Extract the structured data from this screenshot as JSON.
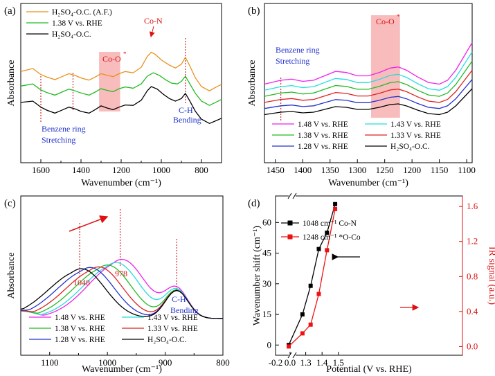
{
  "figure": {
    "panels": [
      "(a)",
      "(b)",
      "(c)",
      "(d)"
    ]
  },
  "chart_data": [
    {
      "panel": "(a)",
      "type": "line",
      "xlabel": "Wavenumber (cm⁻¹)",
      "ylabel": "Absorbance",
      "xlim": [
        1700,
        700
      ],
      "xticks": [
        "1600",
        "1400",
        "1200",
        "1000",
        "800"
      ],
      "series": [
        {
          "name": "H₂SO₄-O.C. (A.F.)",
          "color": "#e8901a",
          "offset": 0.72,
          "points": [
            [
              1700,
              0.55
            ],
            [
              1640,
              0.62
            ],
            [
              1600,
              0.48
            ],
            [
              1570,
              0.42
            ],
            [
              1530,
              0.36
            ],
            [
              1500,
              0.42
            ],
            [
              1460,
              0.5
            ],
            [
              1430,
              0.46
            ],
            [
              1400,
              0.4
            ],
            [
              1360,
              0.35
            ],
            [
              1330,
              0.42
            ],
            [
              1300,
              0.5
            ],
            [
              1270,
              0.46
            ],
            [
              1240,
              0.43
            ],
            [
              1210,
              0.5
            ],
            [
              1180,
              0.55
            ],
            [
              1140,
              0.52
            ],
            [
              1100,
              0.65
            ],
            [
              1070,
              0.9
            ],
            [
              1050,
              1.0
            ],
            [
              1030,
              0.95
            ],
            [
              1000,
              0.82
            ],
            [
              960,
              0.7
            ],
            [
              930,
              0.63
            ],
            [
              900,
              0.72
            ],
            [
              880,
              0.88
            ],
            [
              860,
              0.7
            ],
            [
              830,
              0.4
            ],
            [
              800,
              0.2
            ],
            [
              760,
              0.1
            ],
            [
              730,
              0.18
            ],
            [
              700,
              0.25
            ]
          ]
        },
        {
          "name": "1.38 V vs. RHE",
          "color": "#22bb22",
          "offset": 0.38,
          "points": [
            [
              1700,
              0.55
            ],
            [
              1640,
              0.6
            ],
            [
              1600,
              0.46
            ],
            [
              1570,
              0.4
            ],
            [
              1530,
              0.34
            ],
            [
              1500,
              0.4
            ],
            [
              1460,
              0.48
            ],
            [
              1430,
              0.44
            ],
            [
              1400,
              0.39
            ],
            [
              1360,
              0.34
            ],
            [
              1330,
              0.41
            ],
            [
              1300,
              0.49
            ],
            [
              1270,
              0.45
            ],
            [
              1240,
              0.42
            ],
            [
              1210,
              0.49
            ],
            [
              1180,
              0.53
            ],
            [
              1140,
              0.5
            ],
            [
              1100,
              0.6
            ],
            [
              1070,
              0.78
            ],
            [
              1040,
              0.86
            ],
            [
              1010,
              0.8
            ],
            [
              980,
              0.7
            ],
            [
              950,
              0.62
            ],
            [
              920,
              0.6
            ],
            [
              900,
              0.66
            ],
            [
              880,
              0.78
            ],
            [
              860,
              0.62
            ],
            [
              830,
              0.38
            ],
            [
              800,
              0.2
            ],
            [
              760,
              0.1
            ],
            [
              730,
              0.17
            ],
            [
              700,
              0.24
            ]
          ]
        },
        {
          "name": "H₂SO₄-O.C.",
          "color": "#000000",
          "offset": 0.0,
          "points": [
            [
              1700,
              0.55
            ],
            [
              1640,
              0.58
            ],
            [
              1600,
              0.44
            ],
            [
              1570,
              0.37
            ],
            [
              1530,
              0.3
            ],
            [
              1500,
              0.36
            ],
            [
              1460,
              0.44
            ],
            [
              1430,
              0.4
            ],
            [
              1400,
              0.34
            ],
            [
              1360,
              0.3
            ],
            [
              1330,
              0.38
            ],
            [
              1300,
              0.47
            ],
            [
              1270,
              0.42
            ],
            [
              1240,
              0.38
            ],
            [
              1210,
              0.44
            ],
            [
              1180,
              0.49
            ],
            [
              1140,
              0.48
            ],
            [
              1100,
              0.6
            ],
            [
              1070,
              0.82
            ],
            [
              1050,
              0.92
            ],
            [
              1020,
              0.86
            ],
            [
              990,
              0.74
            ],
            [
              960,
              0.64
            ],
            [
              930,
              0.58
            ],
            [
              900,
              0.64
            ],
            [
              880,
              0.76
            ],
            [
              860,
              0.6
            ],
            [
              830,
              0.34
            ],
            [
              800,
              0.16
            ],
            [
              760,
              0.06
            ],
            [
              730,
              0.12
            ],
            [
              700,
              0.18
            ]
          ]
        }
      ],
      "markers": [
        1600,
        1440,
        880
      ],
      "highlight": [
        1310,
        1205
      ],
      "annotations": {
        "co_o": "Co-O",
        "co_n": "Co-N",
        "ch1": "C-H",
        "ch2": "Bending",
        "bz1": "Benzene ring",
        "bz2": "Stretching"
      }
    },
    {
      "panel": "(b)",
      "type": "line",
      "xlabel": "Wavenumber (cm⁻¹)",
      "ylabel": "Absorbance",
      "xlim": [
        1470,
        1090
      ],
      "xticks": [
        "1450",
        "1400",
        "1350",
        "1300",
        "1250",
        "1200",
        "1150",
        "1100"
      ],
      "series": [
        {
          "name": "1.48 V vs. RHE",
          "color": "#ee22ee",
          "offset": 1.25
        },
        {
          "name": "1.43 V vs. RHE",
          "color": "#22dddd",
          "offset": 1.0
        },
        {
          "name": "1.38 V vs. RHE",
          "color": "#22bb22",
          "offset": 0.75
        },
        {
          "name": "1.33 V vs. RHE",
          "color": "#dd2222",
          "offset": 0.5
        },
        {
          "name": "1.28 V vs. RHE",
          "color": "#2233cc",
          "offset": 0.25
        },
        {
          "name": "H₂SO₄-O.C.",
          "color": "#000000",
          "offset": 0.0
        }
      ],
      "base_points": [
        [
          1470,
          0.05
        ],
        [
          1440,
          0.12
        ],
        [
          1420,
          0.14
        ],
        [
          1400,
          0.1
        ],
        [
          1380,
          0.12
        ],
        [
          1360,
          0.2
        ],
        [
          1340,
          0.28
        ],
        [
          1320,
          0.26
        ],
        [
          1300,
          0.2
        ],
        [
          1280,
          0.2
        ],
        [
          1260,
          0.26
        ],
        [
          1240,
          0.34
        ],
        [
          1225,
          0.36
        ],
        [
          1210,
          0.3
        ],
        [
          1190,
          0.18
        ],
        [
          1170,
          0.08
        ],
        [
          1150,
          0.05
        ],
        [
          1135,
          0.12
        ],
        [
          1120,
          0.3
        ],
        [
          1105,
          0.55
        ],
        [
          1090,
          0.8
        ]
      ],
      "markers": [
        1440
      ],
      "highlight": [
        1275,
        1222
      ],
      "annotations": {
        "co_o": "Co-O",
        "bz1": "Benzene ring",
        "bz2": "Stretching"
      }
    },
    {
      "panel": "(c)",
      "type": "line",
      "xlabel": "Wavenumber (cm⁻¹)",
      "ylabel": "Absorbance",
      "xlim": [
        1150,
        800
      ],
      "xticks": [
        "1100",
        "1000",
        "900",
        "800"
      ],
      "series": [
        {
          "name": "1.48 V vs. RHE",
          "color": "#ee22ee",
          "peak": 975,
          "height": 0.95
        },
        {
          "name": "1.43 V vs. RHE",
          "color": "#22dddd",
          "peak": 985,
          "height": 0.9
        },
        {
          "name": "1.38 V vs. RHE",
          "color": "#22bb22",
          "peak": 1000,
          "height": 0.86
        },
        {
          "name": "1.33 V vs. RHE",
          "color": "#dd2222",
          "peak": 1015,
          "height": 0.83
        },
        {
          "name": "1.28 V vs. RHE",
          "color": "#2233cc",
          "peak": 1030,
          "height": 0.82
        },
        {
          "name": "H₂SO₄-O.C.",
          "color": "#000000",
          "peak": 1045,
          "height": 0.8
        }
      ],
      "markers": [
        1048,
        978,
        880
      ],
      "annotations": {
        "w1048": "1048",
        "w978": "978",
        "ch1": "C-H",
        "ch2": "Bending"
      }
    },
    {
      "panel": "(d)",
      "type": "line",
      "xlabel": "Potential (V vs. RHE)",
      "ylabel_left": "Wavenumber shift (cm⁻¹)",
      "ylabel_right": "IR signal (a.u.)",
      "x_ticks": [
        "-0.2",
        "0.0",
        "1.3",
        "1.4",
        "1.5"
      ],
      "y_left_ticks": [
        "0",
        "15",
        "30",
        "45",
        "60"
      ],
      "y_right_ticks": [
        "0.0",
        "0.4",
        "0.8",
        "1.2",
        "1.6"
      ],
      "ylim_left": [
        -5,
        73
      ],
      "ylim_right": [
        -0.1,
        1.72
      ],
      "series": [
        {
          "name": "1048 cm⁻¹ Co-N",
          "color": "#000000",
          "axis": "left",
          "x": [
            0.0,
            1.28,
            1.33,
            1.38,
            1.43,
            1.48
          ],
          "values": [
            0,
            15,
            29,
            47,
            55,
            69
          ]
        },
        {
          "name": "1248 cm⁻¹ *O-Co",
          "color": "#ee1111",
          "axis": "right",
          "x": [
            0.0,
            1.28,
            1.33,
            1.38,
            1.43,
            1.48
          ],
          "values": [
            0.0,
            0.15,
            0.25,
            0.6,
            1.1,
            1.57
          ]
        }
      ]
    }
  ]
}
